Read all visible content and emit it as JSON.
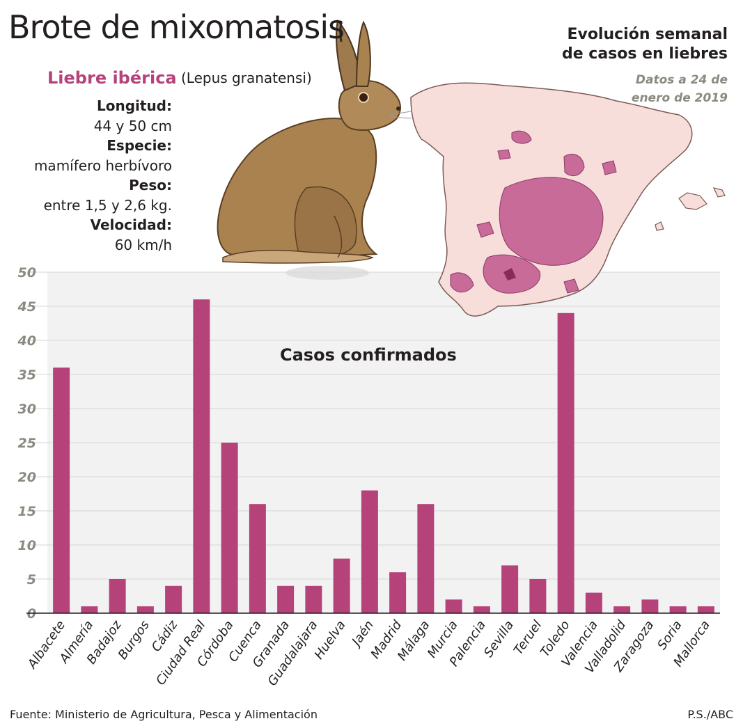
{
  "header": {
    "title": "Brote de mixomatosis",
    "subtitle_line1": "Evolución semanal",
    "subtitle_line2": "de casos en liebres",
    "date_line1": "Datos a 24 de",
    "date_line2": "enero de 2019"
  },
  "species": {
    "name": "Liebre ibérica",
    "scientific_name": "(Lepus granatensi)",
    "facts": [
      {
        "label": "Longitud:",
        "value": "44 y 50 cm"
      },
      {
        "label": "Especie:",
        "value": "mamífero herbívoro"
      },
      {
        "label": "Peso:",
        "value": "entre 1,5 y 2,6 kg."
      },
      {
        "label": "Velocidad:",
        "value": "60 km/h"
      }
    ]
  },
  "chart_data": {
    "type": "bar",
    "title": "Casos confirmados",
    "xlabel": "",
    "ylabel": "",
    "ylim": [
      0,
      50
    ],
    "yticks": [
      0,
      5,
      10,
      15,
      20,
      25,
      30,
      35,
      40,
      45,
      50
    ],
    "grid": true,
    "categories": [
      "Albacete",
      "Almería",
      "Badajoz",
      "Burgos",
      "Cádiz",
      "Ciudad Real",
      "Córdoba",
      "Cuenca",
      "Granada",
      "Guadalajara",
      "Huelva",
      "Jaén",
      "Madrid",
      "Málaga",
      "Murcia",
      "Palencia",
      "Sevilla",
      "Teruel",
      "Toledo",
      "Valencia",
      "Valladolid",
      "Zaragoza",
      "Soria",
      "Mallorca"
    ],
    "values": [
      36,
      1,
      5,
      1,
      4,
      46,
      25,
      16,
      4,
      4,
      8,
      18,
      6,
      16,
      2,
      1,
      7,
      5,
      44,
      3,
      1,
      2,
      1,
      1
    ]
  },
  "footer": {
    "source": "Fuente: Ministerio de Agricultura, Pesca y Alimentación",
    "credit": "P.S./ABC"
  },
  "colors": {
    "bar": "#b5437a",
    "grid": "#d6d6d6",
    "plot_bg": "#f2f2f2",
    "tick_label": "#8a8b80",
    "accent": "#b5437a",
    "map_land": "#f7dedb",
    "map_affected": "#c86b98"
  }
}
